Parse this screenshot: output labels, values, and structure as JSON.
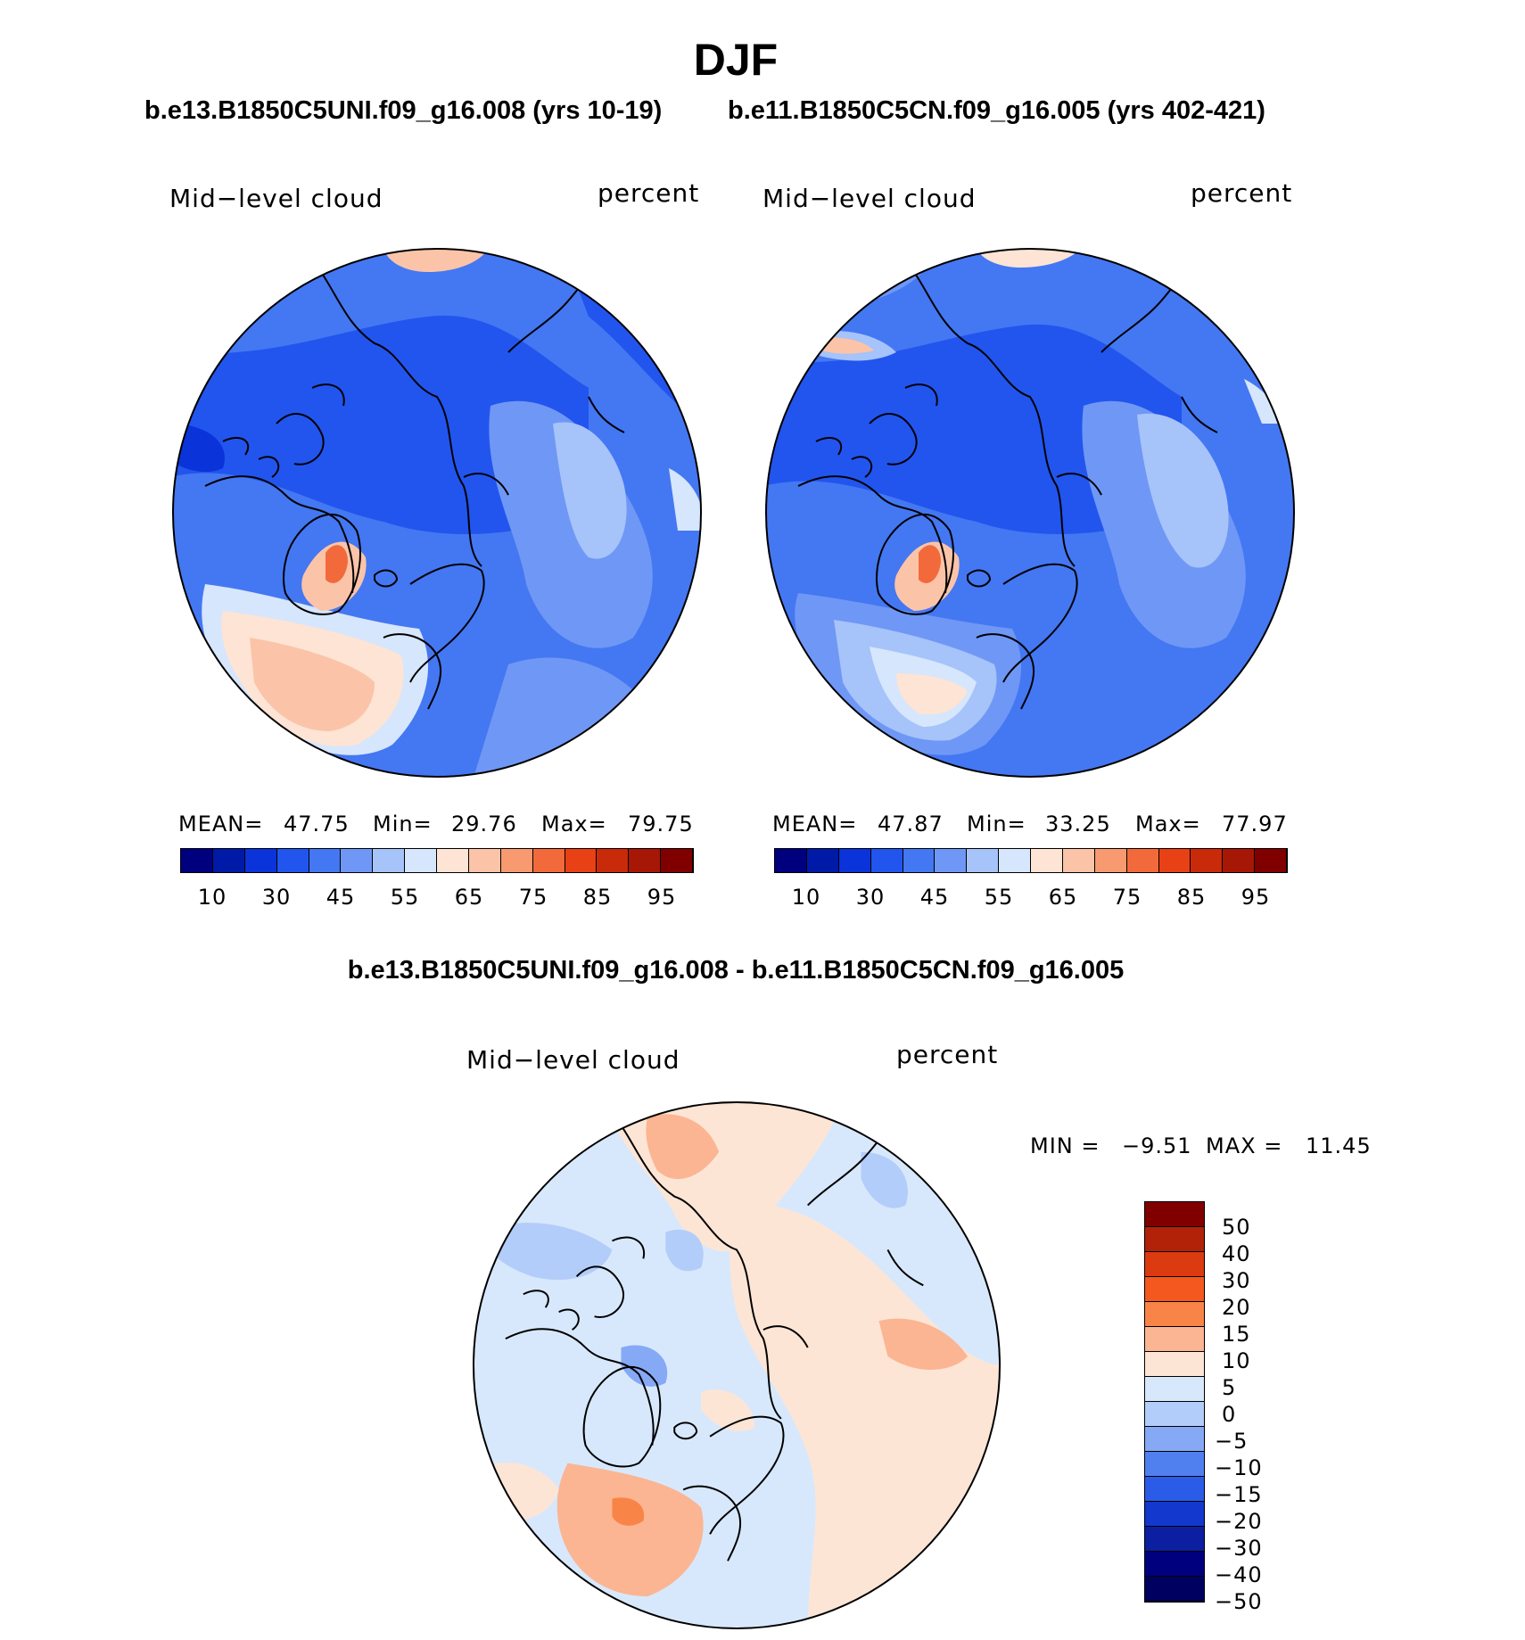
{
  "title": "DJF",
  "panels": [
    {
      "subtitle": "b.e13.B1850C5UNI.f09_g16.008 (yrs 10-19)",
      "variable": "Mid−level cloud",
      "units": "percent",
      "stats": {
        "mean_label": "MEAN=",
        "mean": "47.75",
        "min_label": "Min=",
        "min": "29.76",
        "max_label": "Max=",
        "max": "79.75"
      },
      "colorbar_ticks": [
        "10",
        "30",
        "45",
        "55",
        "65",
        "75",
        "85",
        "95"
      ]
    },
    {
      "subtitle": "b.e11.B1850C5CN.f09_g16.005 (yrs 402-421)",
      "variable": "Mid−level cloud",
      "units": "percent",
      "stats": {
        "mean_label": "MEAN=",
        "mean": "47.87",
        "min_label": "Min=",
        "min": "33.25",
        "max_label": "Max=",
        "max": "77.97"
      },
      "colorbar_ticks": [
        "10",
        "30",
        "45",
        "55",
        "65",
        "75",
        "85",
        "95"
      ]
    }
  ],
  "difference": {
    "title": "b.e13.B1850C5UNI.f09_g16.008 - b.e11.B1850C5CN.f09_g16.005",
    "variable": "Mid−level cloud",
    "units": "percent",
    "stats": {
      "min_label": "MIN =",
      "min": "−9.51",
      "max_label": "MAX =",
      "max": "11.45"
    },
    "colorbar_ticks": [
      "50",
      "40",
      "30",
      "20",
      "15",
      "10",
      "5",
      "0",
      "−5",
      "−10",
      "−15",
      "−20",
      "−30",
      "−40",
      "−50"
    ]
  },
  "colors": {
    "abs_scale": [
      "#00007f",
      "#001aa8",
      "#0a34d9",
      "#2255ee",
      "#4477f2",
      "#6f97f5",
      "#a6c3fa",
      "#d6e6fd",
      "#fde4d4",
      "#fbc4a8",
      "#f79a70",
      "#f26a3b",
      "#e84115",
      "#c92a0a",
      "#a71705",
      "#800000"
    ],
    "diff_scale": [
      "#800000",
      "#b22209",
      "#dc3a0f",
      "#f5581f",
      "#f98447",
      "#fbb592",
      "#fde5d5",
      "#d8e8fc",
      "#b3cdfa",
      "#86a9f6",
      "#5080f0",
      "#2b5ce8",
      "#1238cd",
      "#0c1fa0",
      "#00007f"
    ]
  }
}
